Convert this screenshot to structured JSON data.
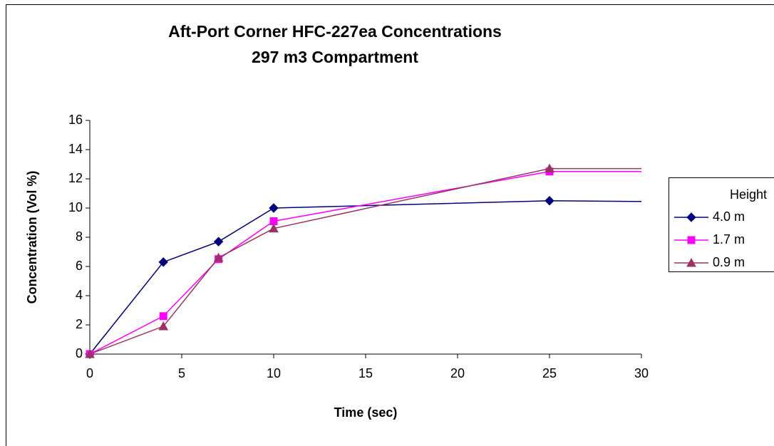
{
  "chart_data": {
    "type": "line",
    "title": "Aft-Port Corner HFC-227ea Concentrations",
    "subtitle": "297 m3 Compartment",
    "x_label": "Time (sec)",
    "y_label": "Concentration (Vol %)",
    "x": [
      0,
      4,
      7,
      10,
      25,
      30
    ],
    "series": [
      {
        "name": "4.0 m",
        "color": "#000080",
        "marker": "diamond",
        "values": [
          0,
          6.3,
          7.7,
          10.0,
          10.5,
          10.45
        ]
      },
      {
        "name": "1.7 m",
        "color": "#ff00ff",
        "marker": "square",
        "values": [
          0,
          2.6,
          6.5,
          9.1,
          12.5,
          12.5
        ]
      },
      {
        "name": "0.9 m",
        "color": "#993366",
        "marker": "triangle",
        "values": [
          0,
          1.9,
          6.6,
          8.6,
          12.7,
          12.7
        ]
      }
    ],
    "legend_title": "Height",
    "legend": "right",
    "xlim": [
      0,
      30
    ],
    "xticks": [
      0,
      5,
      10,
      15,
      20,
      25,
      30
    ],
    "ylim": [
      0,
      16
    ],
    "yticks": [
      0,
      2,
      4,
      6,
      8,
      10,
      12,
      14,
      16
    ],
    "grid": false
  }
}
